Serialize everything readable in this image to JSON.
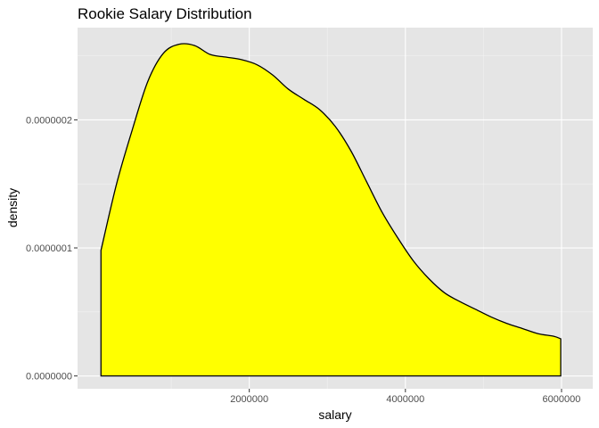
{
  "chart_data": {
    "type": "area",
    "title": "Rookie Salary Distribution",
    "xlabel": "salary",
    "ylabel": "density",
    "xlim": [
      -200000,
      6400000
    ],
    "ylim": [
      -1e-08,
      2.72e-07
    ],
    "x_ticks": [
      {
        "value": 2000000,
        "label": "2000000"
      },
      {
        "value": 4000000,
        "label": "4000000"
      },
      {
        "value": 6000000,
        "label": "6000000"
      }
    ],
    "x_minor": [
      1000000,
      3000000,
      5000000
    ],
    "y_ticks": [
      {
        "value": 0,
        "label": "0.0000000"
      },
      {
        "value": 1e-07,
        "label": "0.0000001"
      },
      {
        "value": 2e-07,
        "label": "0.0000002"
      }
    ],
    "y_minor": [
      5e-08,
      1.5e-07,
      2.5e-07
    ],
    "grid": true,
    "panel_color": "#e5e5e5",
    "fill_color": "#ffff00",
    "line_color": "#000000",
    "series": [
      {
        "x": [
          100000,
          300000,
          500000,
          700000,
          900000,
          1100000,
          1300000,
          1500000,
          1700000,
          1900000,
          2100000,
          2300000,
          2500000,
          2700000,
          2900000,
          3100000,
          3300000,
          3500000,
          3700000,
          3900000,
          4100000,
          4300000,
          4500000,
          4700000,
          4900000,
          5100000,
          5300000,
          5500000,
          5700000,
          5900000,
          5990000
        ],
        "y": [
          9.8e-08,
          1.5e-07,
          1.92e-07,
          2.3e-07,
          2.52e-07,
          2.59e-07,
          2.58e-07,
          2.51e-07,
          2.49e-07,
          2.47e-07,
          2.43e-07,
          2.35e-07,
          2.24e-07,
          2.16e-07,
          2.08e-07,
          1.95e-07,
          1.76e-07,
          1.52e-07,
          1.28e-07,
          1.08e-07,
          9e-08,
          7.6e-08,
          6.5e-08,
          5.8e-08,
          5.2e-08,
          4.6e-08,
          4.1e-08,
          3.7e-08,
          3.3e-08,
          3.1e-08,
          2.9e-08
        ]
      }
    ]
  }
}
